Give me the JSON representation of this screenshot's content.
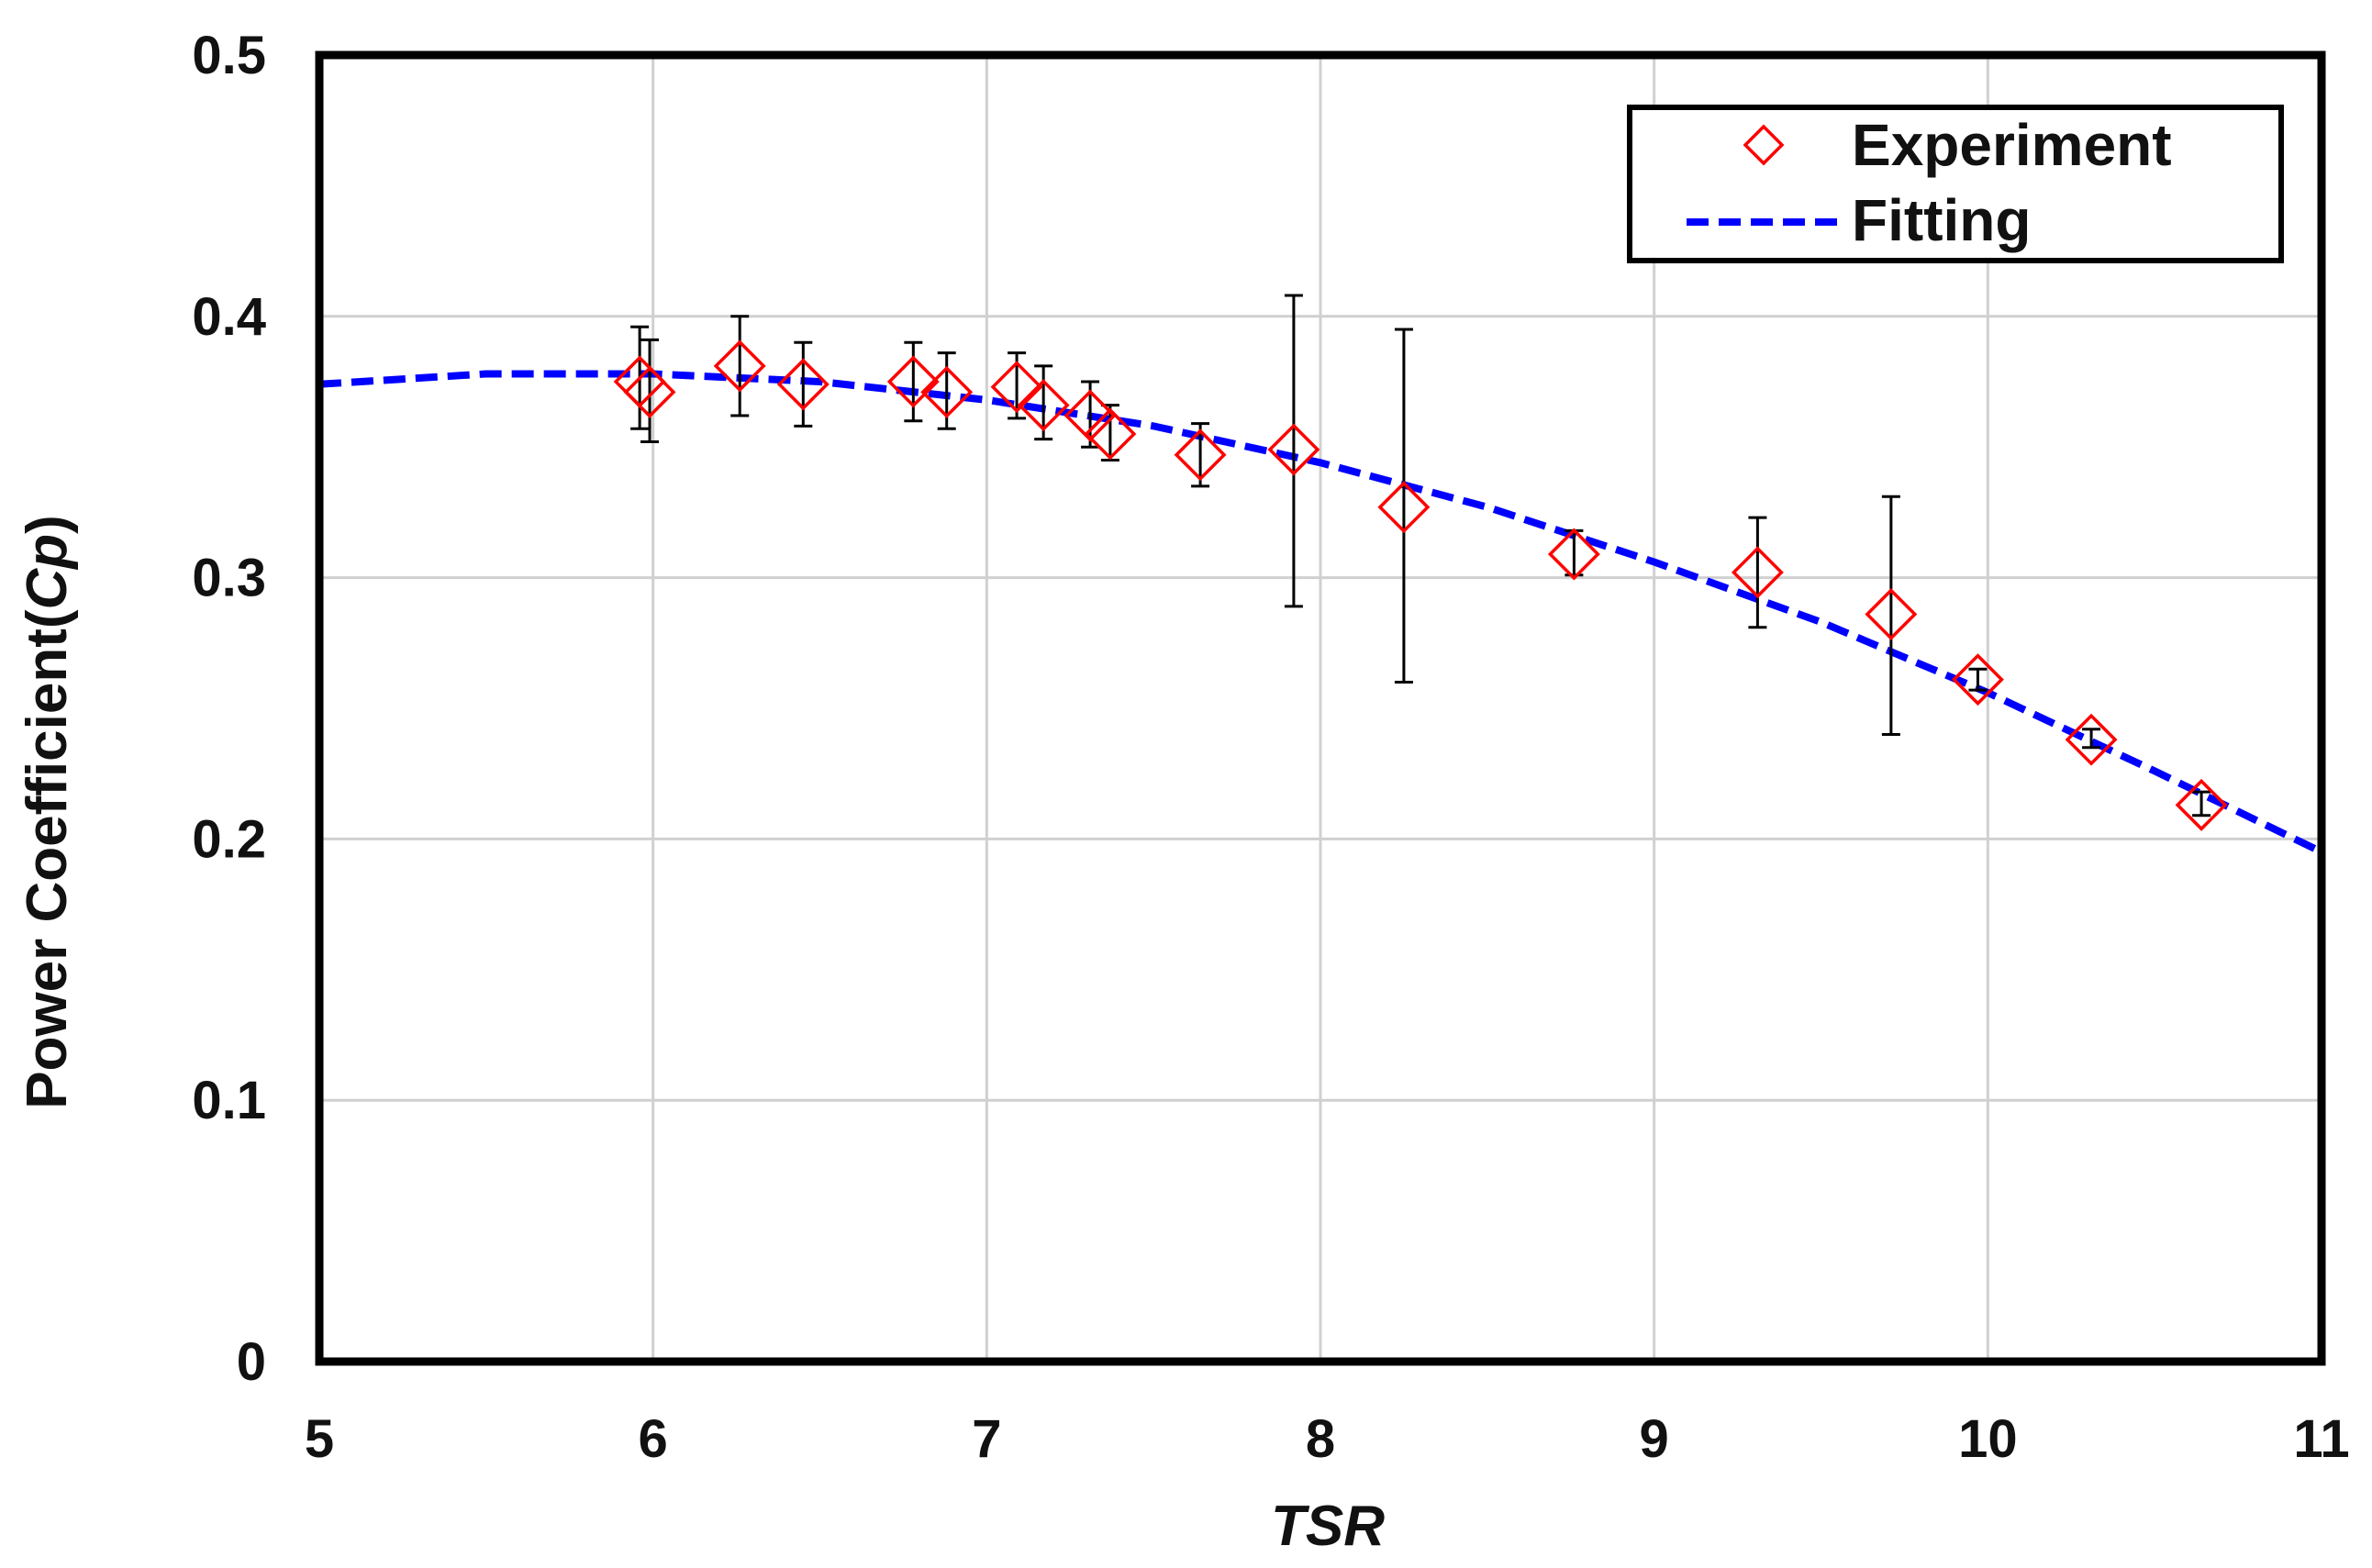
{
  "chart_data": {
    "type": "scatter",
    "xlabel": "TSR",
    "ylabel_prefix": "Power Coefficient(",
    "ylabel_italic": "Cp",
    "ylabel_suffix": ")",
    "xlim": [
      5,
      11
    ],
    "ylim": [
      0,
      0.5
    ],
    "x_ticks": [
      "5",
      "6",
      "7",
      "8",
      "9",
      "10",
      "11"
    ],
    "y_ticks": [
      "0",
      "0.1",
      "0.2",
      "0.3",
      "0.4",
      "0.5"
    ],
    "grid": true,
    "legend_position": "top-right",
    "series": [
      {
        "name": "Experiment",
        "marker": "diamond-open",
        "color": "#ff0000",
        "points": [
          {
            "x": 5.96,
            "y": 0.375,
            "err_low": 0.357,
            "err_high": 0.396
          },
          {
            "x": 5.99,
            "y": 0.371,
            "err_low": 0.352,
            "err_high": 0.391
          },
          {
            "x": 6.26,
            "y": 0.381,
            "err_low": 0.362,
            "err_high": 0.4
          },
          {
            "x": 6.45,
            "y": 0.374,
            "err_low": 0.358,
            "err_high": 0.39
          },
          {
            "x": 6.78,
            "y": 0.375,
            "err_low": 0.36,
            "err_high": 0.39
          },
          {
            "x": 6.88,
            "y": 0.371,
            "err_low": 0.357,
            "err_high": 0.386
          },
          {
            "x": 7.09,
            "y": 0.373,
            "err_low": 0.361,
            "err_high": 0.386
          },
          {
            "x": 7.17,
            "y": 0.366,
            "err_low": 0.353,
            "err_high": 0.381
          },
          {
            "x": 7.31,
            "y": 0.362,
            "err_low": 0.35,
            "err_high": 0.375
          },
          {
            "x": 7.37,
            "y": 0.355,
            "err_low": 0.345,
            "err_high": 0.366
          },
          {
            "x": 7.64,
            "y": 0.347,
            "err_low": 0.335,
            "err_high": 0.359
          },
          {
            "x": 7.92,
            "y": 0.349,
            "err_low": 0.289,
            "err_high": 0.408
          },
          {
            "x": 8.25,
            "y": 0.327,
            "err_low": 0.26,
            "err_high": 0.395
          },
          {
            "x": 8.76,
            "y": 0.309,
            "err_low": 0.301,
            "err_high": 0.318
          },
          {
            "x": 9.31,
            "y": 0.302,
            "err_low": 0.281,
            "err_high": 0.323
          },
          {
            "x": 9.71,
            "y": 0.286,
            "err_low": 0.24,
            "err_high": 0.331
          },
          {
            "x": 9.97,
            "y": 0.261,
            "err_low": 0.257,
            "err_high": 0.265
          },
          {
            "x": 10.31,
            "y": 0.238,
            "err_low": 0.235,
            "err_high": 0.242
          },
          {
            "x": 10.64,
            "y": 0.213,
            "err_low": 0.209,
            "err_high": 0.218
          }
        ]
      },
      {
        "name": "Fitting",
        "style": "dashed",
        "color": "#0000ff",
        "x": [
          5.0,
          5.5,
          6.0,
          6.5,
          7.0,
          7.5,
          8.0,
          8.5,
          9.0,
          9.5,
          10.0,
          10.5,
          11.0
        ],
        "y": [
          0.374,
          0.378,
          0.378,
          0.375,
          0.368,
          0.358,
          0.344,
          0.327,
          0.306,
          0.283,
          0.256,
          0.226,
          0.195
        ]
      }
    ]
  }
}
